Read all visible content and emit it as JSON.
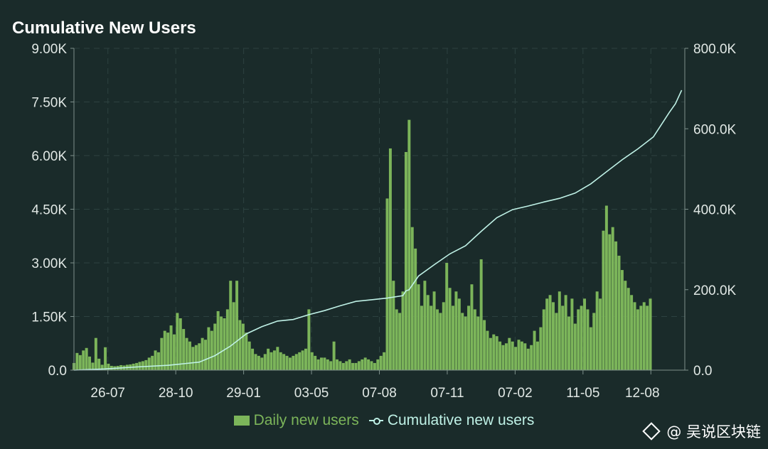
{
  "chart_data": {
    "type": "bar+line",
    "title": "Cumulative New Users",
    "x_tick_labels": [
      "26-07",
      "28-10",
      "29-01",
      "03-05",
      "07-08",
      "07-11",
      "07-02",
      "11-05",
      "12-08"
    ],
    "left_axis": {
      "label": "Daily new users",
      "range": [
        0,
        9000
      ],
      "tick_labels": [
        "0.0",
        "1.50K",
        "3.00K",
        "4.50K",
        "6.00K",
        "7.50K",
        "9.00K"
      ]
    },
    "right_axis": {
      "label": "Cumulative new users",
      "range": [
        0,
        800000
      ],
      "tick_labels": [
        "0.0",
        "200.0K",
        "400.0K",
        "600.0K",
        "800.0K"
      ]
    },
    "series": [
      {
        "name": "Daily new users",
        "type": "bar",
        "color": "#7cb55a",
        "points": [
          [
            0,
            200
          ],
          [
            1,
            480
          ],
          [
            2,
            420
          ],
          [
            3,
            550
          ],
          [
            4,
            620
          ],
          [
            5,
            380
          ],
          [
            6,
            210
          ],
          [
            7,
            900
          ],
          [
            8,
            320
          ],
          [
            9,
            150
          ],
          [
            10,
            640
          ],
          [
            11,
            180
          ],
          [
            12,
            120
          ],
          [
            13,
            110
          ],
          [
            14,
            120
          ],
          [
            15,
            140
          ],
          [
            16,
            130
          ],
          [
            17,
            150
          ],
          [
            18,
            160
          ],
          [
            19,
            180
          ],
          [
            20,
            200
          ],
          [
            21,
            230
          ],
          [
            22,
            250
          ],
          [
            23,
            280
          ],
          [
            24,
            350
          ],
          [
            25,
            400
          ],
          [
            26,
            550
          ],
          [
            27,
            500
          ],
          [
            28,
            900
          ],
          [
            29,
            1100
          ],
          [
            30,
            1050
          ],
          [
            31,
            1250
          ],
          [
            32,
            1000
          ],
          [
            33,
            1600
          ],
          [
            34,
            1450
          ],
          [
            35,
            1150
          ],
          [
            36,
            900
          ],
          [
            37,
            800
          ],
          [
            38,
            650
          ],
          [
            39,
            700
          ],
          [
            40,
            750
          ],
          [
            41,
            900
          ],
          [
            42,
            850
          ],
          [
            43,
            1200
          ],
          [
            44,
            1100
          ],
          [
            45,
            1300
          ],
          [
            46,
            1650
          ],
          [
            47,
            1500
          ],
          [
            48,
            1450
          ],
          [
            49,
            1700
          ],
          [
            50,
            2500
          ],
          [
            51,
            1900
          ],
          [
            52,
            2500
          ],
          [
            53,
            1400
          ],
          [
            54,
            1300
          ],
          [
            55,
            1050
          ],
          [
            56,
            800
          ],
          [
            57,
            600
          ],
          [
            58,
            450
          ],
          [
            59,
            400
          ],
          [
            60,
            350
          ],
          [
            61,
            450
          ],
          [
            62,
            600
          ],
          [
            63,
            500
          ],
          [
            64,
            550
          ],
          [
            65,
            650
          ],
          [
            66,
            500
          ],
          [
            67,
            450
          ],
          [
            68,
            400
          ],
          [
            69,
            350
          ],
          [
            70,
            400
          ],
          [
            71,
            450
          ],
          [
            72,
            500
          ],
          [
            73,
            550
          ],
          [
            74,
            600
          ],
          [
            75,
            1700
          ],
          [
            76,
            500
          ],
          [
            77,
            400
          ],
          [
            78,
            300
          ],
          [
            79,
            350
          ],
          [
            80,
            350
          ],
          [
            81,
            300
          ],
          [
            82,
            250
          ],
          [
            83,
            800
          ],
          [
            84,
            300
          ],
          [
            85,
            250
          ],
          [
            86,
            200
          ],
          [
            87,
            250
          ],
          [
            88,
            300
          ],
          [
            89,
            200
          ],
          [
            90,
            200
          ],
          [
            91,
            250
          ],
          [
            92,
            300
          ],
          [
            93,
            350
          ],
          [
            94,
            300
          ],
          [
            95,
            250
          ],
          [
            96,
            200
          ],
          [
            97,
            300
          ],
          [
            98,
            400
          ],
          [
            99,
            500
          ],
          [
            100,
            4800
          ],
          [
            101,
            6200
          ],
          [
            102,
            2500
          ],
          [
            103,
            1700
          ],
          [
            104,
            1600
          ],
          [
            105,
            2200
          ],
          [
            106,
            6100
          ],
          [
            107,
            7000
          ],
          [
            108,
            4000
          ],
          [
            109,
            3400
          ],
          [
            110,
            2400
          ],
          [
            111,
            1800
          ],
          [
            112,
            2500
          ],
          [
            113,
            2100
          ],
          [
            114,
            1800
          ],
          [
            115,
            2200
          ],
          [
            116,
            1700
          ],
          [
            117,
            1600
          ],
          [
            118,
            1900
          ],
          [
            119,
            3000
          ],
          [
            120,
            2300
          ],
          [
            121,
            1800
          ],
          [
            122,
            2200
          ],
          [
            123,
            2000
          ],
          [
            124,
            1600
          ],
          [
            125,
            1500
          ],
          [
            126,
            1800
          ],
          [
            127,
            2400
          ],
          [
            128,
            1700
          ],
          [
            129,
            1500
          ],
          [
            130,
            3100
          ],
          [
            131,
            1400
          ],
          [
            132,
            1100
          ],
          [
            133,
            900
          ],
          [
            134,
            1000
          ],
          [
            135,
            950
          ],
          [
            136,
            800
          ],
          [
            137,
            700
          ],
          [
            138,
            750
          ],
          [
            139,
            900
          ],
          [
            140,
            800
          ],
          [
            141,
            650
          ],
          [
            142,
            850
          ],
          [
            143,
            800
          ],
          [
            144,
            750
          ],
          [
            145,
            600
          ],
          [
            146,
            700
          ],
          [
            147,
            1100
          ],
          [
            148,
            800
          ],
          [
            149,
            1200
          ],
          [
            150,
            1700
          ],
          [
            151,
            2000
          ],
          [
            152,
            2100
          ],
          [
            153,
            1900
          ],
          [
            154,
            1600
          ],
          [
            155,
            2200
          ],
          [
            156,
            1800
          ],
          [
            157,
            2100
          ],
          [
            158,
            1500
          ],
          [
            159,
            2000
          ],
          [
            160,
            1300
          ],
          [
            161,
            1700
          ],
          [
            162,
            1800
          ],
          [
            163,
            2000
          ],
          [
            164,
            1700
          ],
          [
            165,
            1200
          ],
          [
            166,
            1600
          ],
          [
            167,
            2200
          ],
          [
            168,
            2000
          ],
          [
            169,
            3900
          ],
          [
            170,
            4600
          ],
          [
            171,
            3800
          ],
          [
            172,
            4000
          ],
          [
            173,
            3600
          ],
          [
            174,
            3200
          ],
          [
            175,
            2800
          ],
          [
            176,
            2500
          ],
          [
            177,
            2300
          ],
          [
            178,
            2100
          ],
          [
            179,
            1900
          ],
          [
            180,
            1700
          ],
          [
            181,
            1800
          ],
          [
            182,
            1900
          ],
          [
            183,
            1800
          ],
          [
            184,
            2000
          ]
        ]
      },
      {
        "name": "Cumulative new users",
        "type": "line",
        "color": "#bff1e6",
        "points": [
          [
            0,
            0
          ],
          [
            10,
            3000
          ],
          [
            20,
            8000
          ],
          [
            30,
            12000
          ],
          [
            40,
            20000
          ],
          [
            45,
            36000
          ],
          [
            50,
            60000
          ],
          [
            55,
            90000
          ],
          [
            60,
            108000
          ],
          [
            65,
            122000
          ],
          [
            70,
            126000
          ],
          [
            75,
            138000
          ],
          [
            80,
            148000
          ],
          [
            85,
            160000
          ],
          [
            90,
            171000
          ],
          [
            95,
            175000
          ],
          [
            100,
            179000
          ],
          [
            105,
            185000
          ],
          [
            106,
            197000
          ],
          [
            107,
            200000
          ],
          [
            110,
            234000
          ],
          [
            115,
            262000
          ],
          [
            120,
            289000
          ],
          [
            125,
            309000
          ],
          [
            130,
            345000
          ],
          [
            135,
            379000
          ],
          [
            140,
            399000
          ],
          [
            145,
            408000
          ],
          [
            150,
            418000
          ],
          [
            155,
            427000
          ],
          [
            160,
            440000
          ],
          [
            165,
            463000
          ],
          [
            170,
            493000
          ],
          [
            175,
            523000
          ],
          [
            180,
            550000
          ],
          [
            185,
            580000
          ],
          [
            190,
            640000
          ],
          [
            192,
            662000
          ],
          [
            194,
            696000
          ]
        ]
      }
    ],
    "legend_position": "bottom-center"
  },
  "watermark": {
    "text": "@ 吴说区块链",
    "icon": "diamond-icon"
  }
}
